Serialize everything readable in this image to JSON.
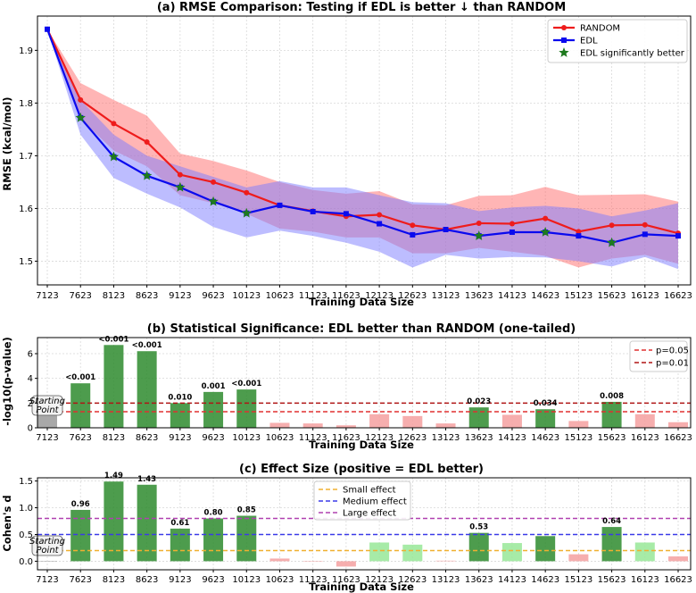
{
  "chart_data": [
    {
      "type": "line",
      "title": "(a) RMSE Comparison: Testing if EDL is better ↓ than RANDOM",
      "xlabel": "Training Data Size",
      "ylabel": "RMSE (kcal/mol)",
      "categories": [
        "7123",
        "7623",
        "8123",
        "8623",
        "9123",
        "9623",
        "10123",
        "10623",
        "11123",
        "11623",
        "12123",
        "12623",
        "13123",
        "13623",
        "14123",
        "14623",
        "15123",
        "15623",
        "16123",
        "16623"
      ],
      "ylim": [
        1.455,
        1.965
      ],
      "yticks": [
        1.5,
        1.6,
        1.7,
        1.8,
        1.9
      ],
      "grid": true,
      "legend_position": "top-right",
      "series": [
        {
          "name": "RANDOM",
          "color": "#ee1c1c",
          "band_color": "#ff6b6b",
          "marker": "circle",
          "values": [
            1.94,
            1.806,
            1.761,
            1.726,
            1.664,
            1.65,
            1.63,
            1.606,
            1.595,
            1.585,
            1.588,
            1.568,
            1.56,
            1.572,
            1.571,
            1.581,
            1.556,
            1.568,
            1.569,
            1.553
          ],
          "lower": [
            1.94,
            1.77,
            1.71,
            1.68,
            1.625,
            1.61,
            1.59,
            1.562,
            1.556,
            1.545,
            1.545,
            1.515,
            1.515,
            1.525,
            1.518,
            1.51,
            1.488,
            1.505,
            1.512,
            1.495
          ],
          "upper": [
            1.94,
            1.838,
            1.806,
            1.776,
            1.704,
            1.69,
            1.672,
            1.65,
            1.635,
            1.628,
            1.633,
            1.608,
            1.606,
            1.624,
            1.625,
            1.641,
            1.625,
            1.626,
            1.627,
            1.613
          ]
        },
        {
          "name": "EDL",
          "color": "#0a0aee",
          "band_color": "#7b7bff",
          "marker": "square",
          "values": [
            1.94,
            1.772,
            1.698,
            1.662,
            1.64,
            1.613,
            1.591,
            1.606,
            1.594,
            1.59,
            1.571,
            1.55,
            1.56,
            1.548,
            1.555,
            1.555,
            1.548,
            1.535,
            1.551,
            1.548
          ],
          "lower": [
            1.94,
            1.74,
            1.658,
            1.628,
            1.602,
            1.565,
            1.545,
            1.558,
            1.548,
            1.535,
            1.518,
            1.488,
            1.512,
            1.505,
            1.508,
            1.507,
            1.5,
            1.49,
            1.508,
            1.485
          ],
          "upper": [
            1.94,
            1.806,
            1.74,
            1.7,
            1.68,
            1.66,
            1.64,
            1.652,
            1.64,
            1.64,
            1.625,
            1.612,
            1.61,
            1.595,
            1.602,
            1.605,
            1.6,
            1.585,
            1.596,
            1.61
          ]
        }
      ],
      "significant_indices": [
        1,
        2,
        3,
        4,
        5,
        6,
        13,
        15,
        17
      ],
      "significant_label": "EDL significantly better",
      "significant_color": "#1e7a1e"
    },
    {
      "type": "bar",
      "title": "(b) Statistical Significance: EDL better than RANDOM (one-tailed)",
      "xlabel": "Training Data Size",
      "ylabel": "-log10(p-value)",
      "categories": [
        "7123",
        "7623",
        "8123",
        "8623",
        "9123",
        "9623",
        "10123",
        "10623",
        "11123",
        "11623",
        "12123",
        "12623",
        "13123",
        "13623",
        "14123",
        "14623",
        "15123",
        "15623",
        "16123",
        "16623"
      ],
      "values": [
        1.0,
        3.6,
        6.7,
        6.2,
        2.0,
        2.9,
        3.1,
        0.4,
        0.35,
        0.2,
        1.1,
        0.95,
        0.35,
        1.65,
        1.05,
        1.5,
        0.55,
        2.1,
        1.1,
        0.45
      ],
      "labels": [
        "",
        "<0.001",
        "<0.001",
        "<0.001",
        "0.010",
        "0.001",
        "<0.001",
        "",
        "",
        "",
        "",
        "",
        "",
        "0.023",
        "",
        "0.034",
        "",
        "0.008",
        "",
        ""
      ],
      "ylim": [
        0,
        7.3
      ],
      "yticks": [
        0,
        2,
        4,
        6
      ],
      "starting_point_label": [
        "Starting",
        "Point"
      ],
      "reference_lines": [
        {
          "label": "p=0.05",
          "value": 1.301,
          "color": "#e03030"
        },
        {
          "label": "p=0.01",
          "value": 2.0,
          "color": "#b01515"
        }
      ],
      "colors": {
        "significant": "#2e8b2e",
        "nonsignificant": "#f4a0a0",
        "start": "#a8a8a8"
      },
      "legend_position": "top-right"
    },
    {
      "type": "bar",
      "title": "(c) Effect Size (positive = EDL better)",
      "xlabel": "Training Data Size",
      "ylabel": "Cohen's d",
      "categories": [
        "7123",
        "7623",
        "8123",
        "8623",
        "9123",
        "9623",
        "10123",
        "10623",
        "11123",
        "11623",
        "12123",
        "12623",
        "13123",
        "13623",
        "14123",
        "14623",
        "15123",
        "15623",
        "16123",
        "16623"
      ],
      "values": [
        0,
        0.96,
        1.49,
        1.43,
        0.61,
        0.8,
        0.85,
        0.05,
        0.0,
        -0.1,
        0.35,
        0.31,
        0.01,
        0.53,
        0.34,
        0.47,
        0.13,
        0.64,
        0.35,
        0.09
      ],
      "labels": [
        "",
        "0.96",
        "1.49",
        "1.43",
        "0.61",
        "0.80",
        "0.85",
        "",
        "",
        "",
        "",
        "",
        "",
        "0.53",
        "",
        "",
        "",
        "0.64",
        "",
        ""
      ],
      "ylim": [
        -0.16,
        1.56
      ],
      "yticks": [
        0.0,
        0.5,
        1.0,
        1.5
      ],
      "starting_point_label": [
        "Starting",
        "Point"
      ],
      "reference_lines": [
        {
          "label": "Small effect",
          "value": 0.2,
          "color": "#f0b030"
        },
        {
          "label": "Medium effect",
          "value": 0.5,
          "color": "#3a3ae8"
        },
        {
          "label": "Large effect",
          "value": 0.8,
          "color": "#b040b0"
        }
      ],
      "colors": {
        "significant": "#2e8b2e",
        "medium_ns": "#98e898",
        "small_ns": "#f4a0a0",
        "start": "#a8a8a8"
      },
      "legend_position": "top-center"
    }
  ]
}
